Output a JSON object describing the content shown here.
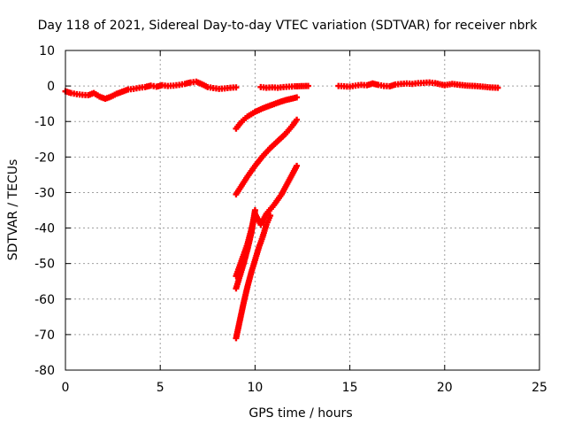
{
  "chart_data": {
    "type": "scatter",
    "title": "Day 118 of 2021, Sidereal Day-to-day VTEC variation (SDTVAR) for receiver nbrk",
    "xlabel": "GPS time / hours",
    "ylabel": "SDTVAR / TECUs",
    "xlim": [
      0,
      25
    ],
    "ylim": [
      -80,
      10
    ],
    "xticks": [
      0,
      5,
      10,
      15,
      20,
      25
    ],
    "yticks": [
      10,
      0,
      -10,
      -20,
      -30,
      -40,
      -50,
      -60,
      -70,
      -80
    ],
    "grid": true,
    "legend": "none",
    "marker": "plus",
    "color": "#ff0000",
    "series": [
      {
        "points": [
          [
            0.0,
            -1.5
          ],
          [
            0.3,
            -2.0
          ],
          [
            0.6,
            -2.3
          ],
          [
            0.9,
            -2.5
          ],
          [
            1.2,
            -2.6
          ],
          [
            1.5,
            -2.0
          ],
          [
            1.8,
            -3.0
          ],
          [
            2.1,
            -3.6
          ],
          [
            2.4,
            -3.0
          ],
          [
            2.7,
            -2.2
          ],
          [
            3.0,
            -1.6
          ],
          [
            3.3,
            -1.0
          ],
          [
            3.6,
            -0.8
          ],
          [
            3.9,
            -0.5
          ],
          [
            4.2,
            -0.3
          ],
          [
            4.5,
            0.1
          ],
          [
            4.8,
            -0.2
          ],
          [
            5.1,
            0.2
          ],
          [
            5.4,
            0.0
          ],
          [
            5.7,
            0.1
          ],
          [
            6.0,
            0.3
          ],
          [
            6.3,
            0.6
          ],
          [
            6.6,
            1.0
          ],
          [
            6.9,
            1.2
          ],
          [
            7.2,
            0.5
          ],
          [
            7.5,
            -0.3
          ],
          [
            7.8,
            -0.6
          ],
          [
            8.1,
            -0.8
          ],
          [
            8.4,
            -0.7
          ],
          [
            8.7,
            -0.5
          ],
          [
            9.0,
            -0.4
          ]
        ]
      },
      {
        "points": [
          [
            10.3,
            -0.3
          ],
          [
            10.6,
            -0.5
          ],
          [
            10.9,
            -0.4
          ],
          [
            11.2,
            -0.5
          ],
          [
            11.5,
            -0.3
          ],
          [
            11.8,
            -0.2
          ],
          [
            12.1,
            -0.1
          ],
          [
            12.8,
            0.0
          ]
        ]
      },
      {
        "points": [
          [
            14.4,
            0.0
          ],
          [
            14.7,
            -0.1
          ],
          [
            15.0,
            -0.2
          ],
          [
            15.3,
            0.1
          ],
          [
            15.6,
            0.3
          ],
          [
            15.9,
            0.2
          ],
          [
            16.2,
            0.7
          ],
          [
            16.5,
            0.3
          ],
          [
            16.8,
            0.0
          ],
          [
            17.1,
            -0.1
          ],
          [
            17.4,
            0.4
          ],
          [
            17.7,
            0.6
          ],
          [
            18.0,
            0.7
          ],
          [
            18.3,
            0.6
          ],
          [
            18.6,
            0.8
          ],
          [
            18.9,
            0.9
          ],
          [
            19.2,
            1.0
          ],
          [
            19.5,
            0.8
          ],
          [
            20.0,
            0.2
          ],
          [
            20.4,
            0.6
          ],
          [
            20.8,
            0.3
          ],
          [
            21.2,
            0.1
          ],
          [
            21.6,
            0.0
          ],
          [
            22.0,
            -0.2
          ],
          [
            22.4,
            -0.4
          ],
          [
            22.8,
            -0.5
          ]
        ]
      },
      {
        "points": [
          [
            9.0,
            -12.0
          ],
          [
            9.3,
            -10.0
          ],
          [
            9.6,
            -8.6
          ],
          [
            10.0,
            -7.3
          ],
          [
            10.4,
            -6.3
          ],
          [
            10.8,
            -5.5
          ],
          [
            11.2,
            -4.7
          ],
          [
            11.6,
            -4.0
          ],
          [
            12.0,
            -3.5
          ],
          [
            12.2,
            -3.2
          ]
        ]
      },
      {
        "points": [
          [
            9.0,
            -30.5
          ],
          [
            9.3,
            -28.0
          ],
          [
            9.6,
            -25.5
          ],
          [
            10.0,
            -22.5
          ],
          [
            10.4,
            -19.8
          ],
          [
            10.8,
            -17.5
          ],
          [
            11.2,
            -15.5
          ],
          [
            11.6,
            -13.5
          ],
          [
            12.0,
            -11.0
          ],
          [
            12.2,
            -9.5
          ]
        ]
      },
      {
        "points": [
          [
            9.0,
            -53.5
          ],
          [
            9.2,
            -50.5
          ],
          [
            9.4,
            -47.5
          ],
          [
            9.6,
            -44.5
          ],
          [
            9.8,
            -40.5
          ],
          [
            10.0,
            -36.0
          ],
          [
            10.3,
            -39.0
          ],
          [
            10.6,
            -36.0
          ],
          [
            11.0,
            -33.5
          ],
          [
            11.4,
            -30.5
          ],
          [
            11.8,
            -26.5
          ],
          [
            12.2,
            -22.5
          ]
        ]
      },
      {
        "points": [
          [
            9.0,
            -57.0
          ],
          [
            9.2,
            -53.5
          ],
          [
            9.4,
            -50.0
          ],
          [
            9.6,
            -46.0
          ],
          [
            9.8,
            -41.5
          ],
          [
            10.0,
            -35.0
          ]
        ]
      },
      {
        "points": [
          [
            9.0,
            -71.0
          ],
          [
            9.2,
            -66.0
          ],
          [
            9.4,
            -61.0
          ],
          [
            9.6,
            -56.5
          ],
          [
            9.8,
            -52.5
          ],
          [
            10.0,
            -49.0
          ],
          [
            10.2,
            -45.5
          ],
          [
            10.4,
            -42.5
          ],
          [
            10.6,
            -39.0
          ],
          [
            10.8,
            -36.5
          ]
        ]
      }
    ]
  }
}
